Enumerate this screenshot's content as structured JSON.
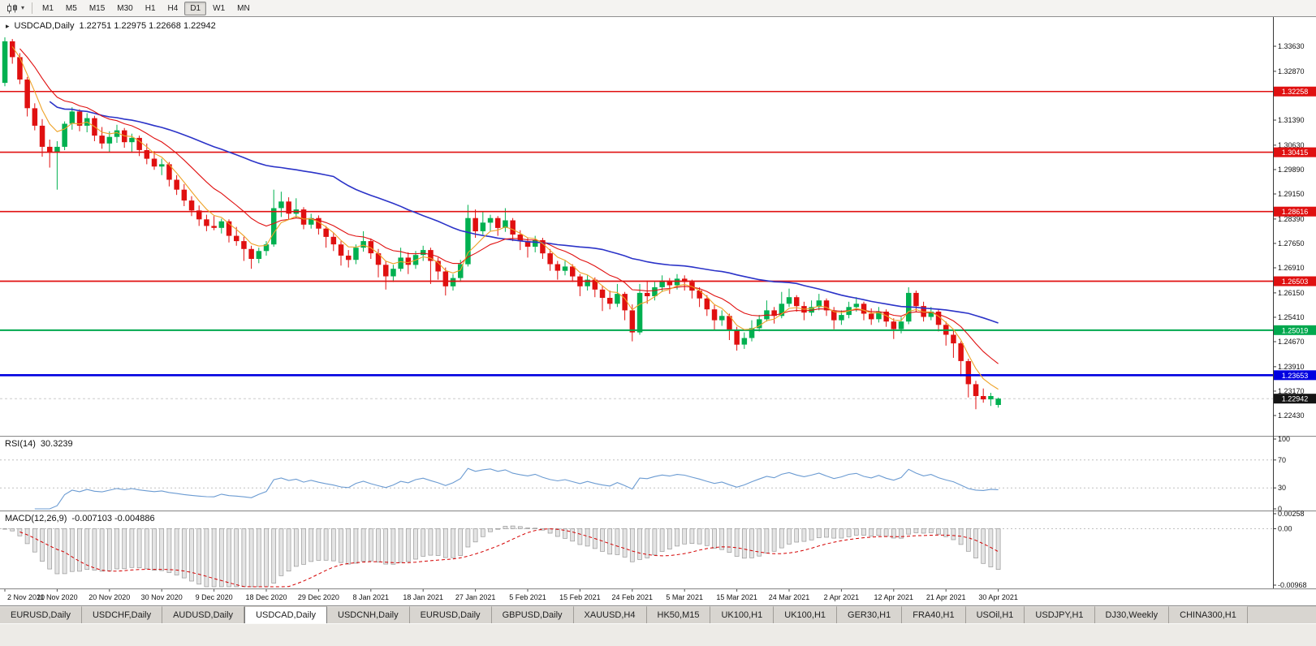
{
  "toolbar": {
    "timeframes": [
      "M1",
      "M5",
      "M15",
      "M30",
      "H1",
      "H4",
      "D1",
      "W1",
      "MN"
    ],
    "active_timeframe": "D1"
  },
  "icons": {
    "chart_type": "candlestick-chart-icon",
    "caret": "▾",
    "window_arrow": "▸"
  },
  "chart": {
    "title_symbol": "USDCAD,Daily",
    "title_ohlc": "1.22751 1.22975 1.22668 1.22942"
  },
  "indicators": {
    "rsi": {
      "label": "RSI(14)",
      "value": "30.3239",
      "ticks": [
        {
          "v": 100,
          "label": "100"
        },
        {
          "v": 70,
          "label": "70"
        },
        {
          "v": 30,
          "label": "30"
        },
        {
          "v": 0,
          "label": "0"
        }
      ],
      "levels": [
        70,
        30
      ]
    },
    "macd": {
      "label": "MACD(12,26,9)",
      "values": "-0.007103 -0.004886",
      "ticks": [
        {
          "v": 0.00258,
          "label": "0.00258"
        },
        {
          "v": 0,
          "label": "0.00"
        },
        {
          "v": -0.00968,
          "label": "-0.00968"
        }
      ]
    }
  },
  "price_axis": {
    "ticks": [
      "1.33630",
      "1.32870",
      "1.31390",
      "1.30630",
      "1.29890",
      "1.29150",
      "1.28390",
      "1.27650",
      "1.26910",
      "1.26150",
      "1.25410",
      "1.24670",
      "1.23910",
      "1.23170",
      "1.22430"
    ]
  },
  "levels": [
    {
      "price": 1.32258,
      "label": "1.32258",
      "color": "#e01010",
      "width": 1.6
    },
    {
      "price": 1.30415,
      "label": "1.30415",
      "color": "#e01010",
      "width": 1.6
    },
    {
      "price": 1.28616,
      "label": "1.28616",
      "color": "#e01010",
      "width": 1.6
    },
    {
      "price": 1.26503,
      "label": "1.26503",
      "color": "#e01010",
      "width": 1.8
    },
    {
      "price": 1.25019,
      "label": "1.25019",
      "color": "#00a84e",
      "width": 2
    },
    {
      "price": 1.23653,
      "label": "1.23653",
      "color": "#0000e0",
      "width": 2.6
    }
  ],
  "current_price": {
    "value": 1.22942,
    "label": "1.22942",
    "badge_color": "#141414"
  },
  "date_axis": [
    "2 Nov 2020",
    "11 Nov 2020",
    "20 Nov 2020",
    "30 Nov 2020",
    "9 Dec 2020",
    "18 Dec 2020",
    "29 Dec 2020",
    "8 Jan 2021",
    "18 Jan 2021",
    "27 Jan 2021",
    "5 Feb 2021",
    "15 Feb 2021",
    "24 Feb 2021",
    "5 Mar 2021",
    "15 Mar 2021",
    "24 Mar 2021",
    "2 Apr 2021",
    "12 Apr 2021",
    "21 Apr 2021",
    "30 Apr 2021"
  ],
  "chart_data": {
    "type": "candlestick",
    "symbol": "USDCAD",
    "timeframe": "Daily",
    "current_bar": {
      "open": 1.22751,
      "high": 1.22975,
      "low": 1.22668,
      "close": 1.22942
    },
    "overlays": [
      {
        "name": "ma-blue-slow",
        "method": "sma",
        "window": 45,
        "start": 6,
        "color": "#2b33c8",
        "width": 1.6
      },
      {
        "name": "ma-red-mid",
        "method": "ema",
        "window": 13,
        "start": 2,
        "color": "#e01010",
        "width": 1.1
      },
      {
        "name": "ma-orange-fast",
        "method": "ema",
        "window": 5,
        "start": 1,
        "color": "#eea227",
        "width": 1.1
      }
    ],
    "candles": [
      [
        1.3252,
        1.339,
        1.3242,
        1.3378
      ],
      [
        1.3378,
        1.3385,
        1.331,
        1.333
      ],
      [
        1.333,
        1.3342,
        1.3248,
        1.3262
      ],
      [
        1.3262,
        1.327,
        1.315,
        1.3175
      ],
      [
        1.3175,
        1.319,
        1.3108,
        1.3122
      ],
      [
        1.3122,
        1.3142,
        1.3028,
        1.3058
      ],
      [
        1.3058,
        1.308,
        1.2995,
        1.3042
      ],
      [
        1.3042,
        1.3075,
        1.2928,
        1.3058
      ],
      [
        1.3058,
        1.3135,
        1.3048,
        1.3128
      ],
      [
        1.3128,
        1.3178,
        1.311,
        1.3165
      ],
      [
        1.3165,
        1.3172,
        1.3105,
        1.3122
      ],
      [
        1.3122,
        1.316,
        1.3102,
        1.3145
      ],
      [
        1.3145,
        1.3152,
        1.3075,
        1.3092
      ],
      [
        1.3092,
        1.3118,
        1.3052,
        1.3068
      ],
      [
        1.3068,
        1.3105,
        1.3042,
        1.3088
      ],
      [
        1.3088,
        1.3125,
        1.307,
        1.3108
      ],
      [
        1.3108,
        1.3115,
        1.3055,
        1.3072
      ],
      [
        1.3072,
        1.3098,
        1.304,
        1.3085
      ],
      [
        1.3085,
        1.3092,
        1.303,
        1.3048
      ],
      [
        1.3048,
        1.3068,
        1.3005,
        1.3022
      ],
      [
        1.3022,
        1.3045,
        1.2988,
        1.2998
      ],
      [
        1.2998,
        1.3022,
        1.2972,
        1.3005
      ],
      [
        1.3005,
        1.3012,
        1.2938,
        1.2958
      ],
      [
        1.2958,
        1.2972,
        1.2912,
        1.2928
      ],
      [
        1.2928,
        1.2945,
        1.2878,
        1.2895
      ],
      [
        1.2895,
        1.2908,
        1.2848,
        1.2865
      ],
      [
        1.2865,
        1.288,
        1.2818,
        1.2838
      ],
      [
        1.2838,
        1.2852,
        1.2802,
        1.2818
      ],
      [
        1.2818,
        1.2848,
        1.2805,
        1.2812
      ],
      [
        1.2812,
        1.284,
        1.2795,
        1.2832
      ],
      [
        1.2832,
        1.2838,
        1.2768,
        1.2788
      ],
      [
        1.2788,
        1.2815,
        1.2758,
        1.2772
      ],
      [
        1.2772,
        1.2785,
        1.2712,
        1.2748
      ],
      [
        1.2748,
        1.2758,
        1.2688,
        1.2718
      ],
      [
        1.2718,
        1.2752,
        1.2705,
        1.2742
      ],
      [
        1.2742,
        1.2772,
        1.2728,
        1.2762
      ],
      [
        1.2762,
        1.2928,
        1.2755,
        1.2872
      ],
      [
        1.2872,
        1.2922,
        1.2845,
        1.2892
      ],
      [
        1.2892,
        1.2905,
        1.2838,
        1.2855
      ],
      [
        1.2855,
        1.2902,
        1.2842,
        1.2868
      ],
      [
        1.2868,
        1.2875,
        1.2808,
        1.2822
      ],
      [
        1.2822,
        1.2855,
        1.281,
        1.2842
      ],
      [
        1.2842,
        1.285,
        1.2792,
        1.281
      ],
      [
        1.281,
        1.2818,
        1.2752,
        1.2785
      ],
      [
        1.2785,
        1.2798,
        1.2742,
        1.2762
      ],
      [
        1.2762,
        1.2772,
        1.2698,
        1.2728
      ],
      [
        1.2728,
        1.2745,
        1.2692,
        1.2715
      ],
      [
        1.2715,
        1.2762,
        1.2702,
        1.2752
      ],
      [
        1.2752,
        1.2802,
        1.274,
        1.2772
      ],
      [
        1.2772,
        1.278,
        1.2718,
        1.2735
      ],
      [
        1.2735,
        1.2748,
        1.2662,
        1.27
      ],
      [
        1.27,
        1.2712,
        1.2625,
        1.2665
      ],
      [
        1.2665,
        1.27,
        1.2648,
        1.2688
      ],
      [
        1.2688,
        1.2752,
        1.268,
        1.2722
      ],
      [
        1.2722,
        1.2738,
        1.2672,
        1.27
      ],
      [
        1.27,
        1.2742,
        1.2688,
        1.273
      ],
      [
        1.273,
        1.2758,
        1.2712,
        1.2745
      ],
      [
        1.2745,
        1.2752,
        1.2642,
        1.2712
      ],
      [
        1.2712,
        1.2722,
        1.2655,
        1.268
      ],
      [
        1.268,
        1.2692,
        1.2607,
        1.2635
      ],
      [
        1.2635,
        1.2672,
        1.2622,
        1.266
      ],
      [
        1.266,
        1.2715,
        1.2648,
        1.2702
      ],
      [
        1.2702,
        1.2882,
        1.2695,
        1.2842
      ],
      [
        1.2842,
        1.2868,
        1.2782,
        1.2802
      ],
      [
        1.2802,
        1.2862,
        1.2792,
        1.2828
      ],
      [
        1.2828,
        1.2852,
        1.2802,
        1.2842
      ],
      [
        1.2842,
        1.2848,
        1.2788,
        1.2812
      ],
      [
        1.2812,
        1.2872,
        1.28,
        1.2835
      ],
      [
        1.2835,
        1.2842,
        1.2772,
        1.2792
      ],
      [
        1.2792,
        1.2805,
        1.2745,
        1.2772
      ],
      [
        1.2772,
        1.2782,
        1.2722,
        1.2755
      ],
      [
        1.2755,
        1.2788,
        1.2738,
        1.2775
      ],
      [
        1.2775,
        1.2782,
        1.2718,
        1.2735
      ],
      [
        1.2735,
        1.2748,
        1.2682,
        1.2702
      ],
      [
        1.2702,
        1.2712,
        1.2655,
        1.2682
      ],
      [
        1.2682,
        1.2712,
        1.2668,
        1.2695
      ],
      [
        1.2695,
        1.2702,
        1.2648,
        1.2665
      ],
      [
        1.2665,
        1.2672,
        1.2605,
        1.2635
      ],
      [
        1.2635,
        1.2668,
        1.2622,
        1.2655
      ],
      [
        1.2655,
        1.2662,
        1.2602,
        1.2625
      ],
      [
        1.2625,
        1.2638,
        1.256,
        1.26
      ],
      [
        1.26,
        1.2622,
        1.2565,
        1.2582
      ],
      [
        1.2582,
        1.2642,
        1.2572,
        1.2612
      ],
      [
        1.2612,
        1.2618,
        1.2532,
        1.2562
      ],
      [
        1.2562,
        1.258,
        1.2468,
        1.2495
      ],
      [
        1.2495,
        1.2642,
        1.2488,
        1.2615
      ],
      [
        1.2615,
        1.2652,
        1.2582,
        1.2605
      ],
      [
        1.2605,
        1.2648,
        1.2592,
        1.2632
      ],
      [
        1.2632,
        1.2668,
        1.2618,
        1.2652
      ],
      [
        1.2652,
        1.266,
        1.2612,
        1.2638
      ],
      [
        1.2638,
        1.2672,
        1.2625,
        1.2658
      ],
      [
        1.2658,
        1.2668,
        1.2622,
        1.2648
      ],
      [
        1.2648,
        1.2655,
        1.2598,
        1.2622
      ],
      [
        1.2622,
        1.2632,
        1.2572,
        1.2598
      ],
      [
        1.2598,
        1.2608,
        1.2545,
        1.2565
      ],
      [
        1.2565,
        1.2578,
        1.2502,
        1.2532
      ],
      [
        1.2532,
        1.2562,
        1.2515,
        1.2545
      ],
      [
        1.2545,
        1.2552,
        1.2472,
        1.2502
      ],
      [
        1.2502,
        1.2512,
        1.244,
        1.2458
      ],
      [
        1.2458,
        1.2495,
        1.2445,
        1.2478
      ],
      [
        1.2478,
        1.2532,
        1.2468,
        1.2508
      ],
      [
        1.2508,
        1.2548,
        1.2498,
        1.2535
      ],
      [
        1.2535,
        1.2592,
        1.2528,
        1.2562
      ],
      [
        1.2562,
        1.2572,
        1.2522,
        1.2545
      ],
      [
        1.2545,
        1.2618,
        1.2538,
        1.2582
      ],
      [
        1.2582,
        1.2628,
        1.2572,
        1.2602
      ],
      [
        1.2602,
        1.2608,
        1.2558,
        1.2575
      ],
      [
        1.2575,
        1.2588,
        1.2532,
        1.2555
      ],
      [
        1.2555,
        1.2592,
        1.2545,
        1.2572
      ],
      [
        1.2572,
        1.2612,
        1.2562,
        1.2592
      ],
      [
        1.2592,
        1.2598,
        1.2545,
        1.2562
      ],
      [
        1.2562,
        1.2572,
        1.2505,
        1.2532
      ],
      [
        1.2532,
        1.2562,
        1.2518,
        1.2548
      ],
      [
        1.2548,
        1.2588,
        1.2538,
        1.2572
      ],
      [
        1.2572,
        1.2602,
        1.2558,
        1.2582
      ],
      [
        1.2582,
        1.2588,
        1.2532,
        1.2552
      ],
      [
        1.2552,
        1.2568,
        1.2518,
        1.2535
      ],
      [
        1.2535,
        1.2572,
        1.2525,
        1.2558
      ],
      [
        1.2558,
        1.2565,
        1.2512,
        1.2528
      ],
      [
        1.2528,
        1.2538,
        1.2475,
        1.2505
      ],
      [
        1.2505,
        1.2542,
        1.2492,
        1.2528
      ],
      [
        1.2528,
        1.2632,
        1.252,
        1.2615
      ],
      [
        1.2615,
        1.2622,
        1.2558,
        1.2575
      ],
      [
        1.2575,
        1.2588,
        1.2528,
        1.2542
      ],
      [
        1.2542,
        1.2572,
        1.2532,
        1.2558
      ],
      [
        1.2558,
        1.2565,
        1.2498,
        1.2518
      ],
      [
        1.2518,
        1.2528,
        1.2455,
        1.2488
      ],
      [
        1.2488,
        1.2502,
        1.2418,
        1.2462
      ],
      [
        1.2462,
        1.2468,
        1.2362,
        1.2408
      ],
      [
        1.2408,
        1.2415,
        1.2298,
        1.2338
      ],
      [
        1.2338,
        1.2348,
        1.2262,
        1.2302
      ],
      [
        1.2302,
        1.2325,
        1.2282,
        1.2292
      ],
      [
        1.2292,
        1.2312,
        1.2272,
        1.2302
      ],
      [
        1.22751,
        1.22975,
        1.22668,
        1.22942
      ]
    ]
  },
  "tabs": {
    "active_index": 3,
    "items": [
      "EURUSD,Daily",
      "USDCHF,Daily",
      "AUDUSD,Daily",
      "USDCAD,Daily",
      "USDCNH,Daily",
      "EURUSD,Daily",
      "GBPUSD,Daily",
      "XAUUSD,H4",
      "HK50,M15",
      "UK100,H1",
      "UK100,H1",
      "GER30,H1",
      "FRA40,H1",
      "USOil,H1",
      "USDJPY,H1",
      "DJ30,Weekly",
      "CHINA300,H1"
    ]
  },
  "colors": {
    "bull": "#00b050",
    "bear": "#e01010",
    "rsi": "#6b9bd2",
    "macd_hist_fill": "#e4e4e4",
    "macd_hist_stroke": "#979797",
    "macd_signal": "#d40000"
  }
}
